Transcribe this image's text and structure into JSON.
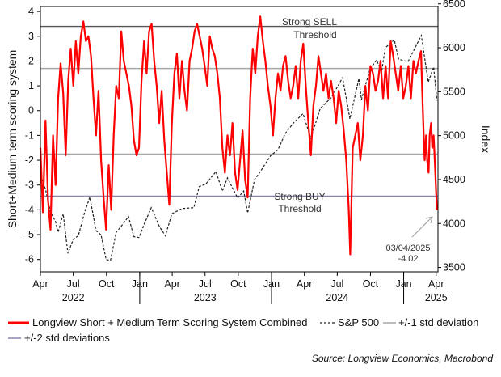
{
  "chart_data": {
    "type": "line",
    "left_axis": {
      "title": "Short+Medium term scoring system",
      "min": -6.5,
      "max": 4.2,
      "ticks": [
        4,
        3,
        2,
        1,
        0,
        -1,
        -2,
        -3,
        -4,
        -5,
        -6
      ]
    },
    "right_axis": {
      "title": "Index",
      "min": 3450,
      "max": 6470,
      "ticks": [
        6500,
        6000,
        5500,
        5000,
        4500,
        4000,
        3500
      ]
    },
    "x_axis": {
      "start": "2022-04-01",
      "end": "2025-04-06",
      "month_ticks": [
        {
          "date": "2022-04-01",
          "label": "Apr"
        },
        {
          "date": "2022-07-01",
          "label": "Jul"
        },
        {
          "date": "2022-10-01",
          "label": "Oct"
        },
        {
          "date": "2023-01-01",
          "label": "Jan"
        },
        {
          "date": "2023-04-01",
          "label": "Apr"
        },
        {
          "date": "2023-07-01",
          "label": "Jul"
        },
        {
          "date": "2023-10-01",
          "label": "Oct"
        },
        {
          "date": "2024-01-01",
          "label": "Jan"
        },
        {
          "date": "2024-04-01",
          "label": "Apr"
        },
        {
          "date": "2024-07-01",
          "label": "Jul"
        },
        {
          "date": "2024-10-01",
          "label": "Oct"
        },
        {
          "date": "2025-01-01",
          "label": "Jan"
        },
        {
          "date": "2025-04-01",
          "label": "Apr"
        }
      ],
      "year_labels": [
        {
          "date": "2022-07-01",
          "label": "2022"
        },
        {
          "date": "2023-07-01",
          "label": "2023"
        },
        {
          "date": "2024-07-01",
          "label": "2024"
        },
        {
          "date": "2025-04-01",
          "label": "2025"
        }
      ]
    },
    "reference_lines": [
      {
        "name": "strong-sell-threshold",
        "value": 3.4,
        "color": "#555555"
      },
      {
        "name": "plus-1-std",
        "value": 1.7,
        "color": "#a6a6a6"
      },
      {
        "name": "minus-1-std",
        "value": -1.75,
        "color": "#a6a6a6"
      },
      {
        "name": "strong-buy-threshold",
        "value": -3.45,
        "color": "#8b84b0"
      }
    ],
    "annotations": {
      "sell_line1": "Strong SELL",
      "sell_line2": "Threshold",
      "buy_line1": "Strong BUY",
      "buy_line2": "Threshold",
      "last_date": "03/04/2025",
      "last_value": "-4.02"
    },
    "series": [
      {
        "name": "Longview Short + Medium Term Scoring System Combined",
        "axis": "left",
        "color": "#ff0000",
        "style": "solid",
        "points": [
          [
            "2022-04-01",
            -1.5
          ],
          [
            "2022-04-08",
            -4.1
          ],
          [
            "2022-04-15",
            -0.4
          ],
          [
            "2022-04-22",
            -3.6
          ],
          [
            "2022-04-29",
            -4.8
          ],
          [
            "2022-05-06",
            -1.0
          ],
          [
            "2022-05-13",
            -3.0
          ],
          [
            "2022-05-20",
            0.5
          ],
          [
            "2022-05-27",
            1.9
          ],
          [
            "2022-06-03",
            0.7
          ],
          [
            "2022-06-10",
            -1.8
          ],
          [
            "2022-06-17",
            1.2
          ],
          [
            "2022-06-24",
            2.5
          ],
          [
            "2022-07-01",
            1.0
          ],
          [
            "2022-07-08",
            2.8
          ],
          [
            "2022-07-15",
            1.5
          ],
          [
            "2022-07-22",
            3.0
          ],
          [
            "2022-07-29",
            3.6
          ],
          [
            "2022-08-05",
            2.8
          ],
          [
            "2022-08-12",
            3.0
          ],
          [
            "2022-08-19",
            2.2
          ],
          [
            "2022-08-26",
            0.5
          ],
          [
            "2022-09-02",
            -1.0
          ],
          [
            "2022-09-09",
            0.8
          ],
          [
            "2022-09-16",
            -2.0
          ],
          [
            "2022-09-23",
            -3.5
          ],
          [
            "2022-09-30",
            -4.8
          ],
          [
            "2022-10-07",
            -2.2
          ],
          [
            "2022-10-14",
            -4.0
          ],
          [
            "2022-10-21",
            -1.0
          ],
          [
            "2022-10-28",
            1.0
          ],
          [
            "2022-11-04",
            0.5
          ],
          [
            "2022-11-11",
            3.2
          ],
          [
            "2022-11-18",
            2.0
          ],
          [
            "2022-11-25",
            1.5
          ],
          [
            "2022-12-02",
            1.0
          ],
          [
            "2022-12-09",
            0.2
          ],
          [
            "2022-12-16",
            -1.2
          ],
          [
            "2022-12-23",
            -1.8
          ],
          [
            "2022-12-30",
            -1.5
          ],
          [
            "2023-01-06",
            1.2
          ],
          [
            "2023-01-13",
            2.8
          ],
          [
            "2023-01-20",
            1.5
          ],
          [
            "2023-01-27",
            3.2
          ],
          [
            "2023-02-03",
            3.5
          ],
          [
            "2023-02-10",
            2.0
          ],
          [
            "2023-02-17",
            1.0
          ],
          [
            "2023-02-24",
            -0.5
          ],
          [
            "2023-03-03",
            0.8
          ],
          [
            "2023-03-10",
            -1.2
          ],
          [
            "2023-03-17",
            -2.5
          ],
          [
            "2023-03-24",
            -3.8
          ],
          [
            "2023-03-31",
            -0.5
          ],
          [
            "2023-04-07",
            1.5
          ],
          [
            "2023-04-14",
            2.3
          ],
          [
            "2023-04-21",
            0.5
          ],
          [
            "2023-04-28",
            2.0
          ],
          [
            "2023-05-05",
            0.8
          ],
          [
            "2023-05-12",
            0.0
          ],
          [
            "2023-05-19",
            2.0
          ],
          [
            "2023-05-26",
            2.5
          ],
          [
            "2023-06-02",
            3.2
          ],
          [
            "2023-06-09",
            3.5
          ],
          [
            "2023-06-16",
            3.0
          ],
          [
            "2023-06-23",
            2.5
          ],
          [
            "2023-06-30",
            1.8
          ],
          [
            "2023-07-07",
            1.0
          ],
          [
            "2023-07-14",
            3.0
          ],
          [
            "2023-07-21",
            2.5
          ],
          [
            "2023-07-28",
            2.2
          ],
          [
            "2023-08-04",
            1.5
          ],
          [
            "2023-08-11",
            0.5
          ],
          [
            "2023-08-18",
            -1.5
          ],
          [
            "2023-08-25",
            -2.5
          ],
          [
            "2023-09-01",
            -1.0
          ],
          [
            "2023-09-08",
            -1.8
          ],
          [
            "2023-09-15",
            -0.5
          ],
          [
            "2023-09-22",
            -2.5
          ],
          [
            "2023-09-29",
            -3.2
          ],
          [
            "2023-10-06",
            -2.0
          ],
          [
            "2023-10-13",
            -0.8
          ],
          [
            "2023-10-20",
            -2.8
          ],
          [
            "2023-10-27",
            -3.5
          ],
          [
            "2023-11-03",
            0.5
          ],
          [
            "2023-11-10",
            2.5
          ],
          [
            "2023-11-17",
            1.5
          ],
          [
            "2023-11-24",
            3.0
          ],
          [
            "2023-12-01",
            3.8
          ],
          [
            "2023-12-08",
            2.8
          ],
          [
            "2023-12-15",
            2.0
          ],
          [
            "2023-12-22",
            1.0
          ],
          [
            "2023-12-29",
            0.2
          ],
          [
            "2024-01-05",
            -1.0
          ],
          [
            "2024-01-12",
            0.5
          ],
          [
            "2024-01-19",
            1.5
          ],
          [
            "2024-01-26",
            0.8
          ],
          [
            "2024-02-02",
            1.8
          ],
          [
            "2024-02-09",
            2.2
          ],
          [
            "2024-02-16",
            1.2
          ],
          [
            "2024-02-23",
            0.5
          ],
          [
            "2024-03-01",
            1.0
          ],
          [
            "2024-03-08",
            1.8
          ],
          [
            "2024-03-15",
            0.5
          ],
          [
            "2024-03-22",
            2.0
          ],
          [
            "2024-03-29",
            2.7
          ],
          [
            "2024-04-05",
            1.0
          ],
          [
            "2024-04-12",
            -0.5
          ],
          [
            "2024-04-19",
            -1.8
          ],
          [
            "2024-04-26",
            0.2
          ],
          [
            "2024-05-03",
            1.0
          ],
          [
            "2024-05-10",
            2.2
          ],
          [
            "2024-05-17",
            1.5
          ],
          [
            "2024-05-24",
            0.8
          ],
          [
            "2024-05-31",
            1.5
          ],
          [
            "2024-06-07",
            0.5
          ],
          [
            "2024-06-14",
            1.2
          ],
          [
            "2024-06-21",
            0.5
          ],
          [
            "2024-06-28",
            -0.5
          ],
          [
            "2024-07-05",
            0.8
          ],
          [
            "2024-07-12",
            0.2
          ],
          [
            "2024-07-19",
            -0.8
          ],
          [
            "2024-07-26",
            -2.0
          ],
          [
            "2024-08-02",
            -4.0
          ],
          [
            "2024-08-06",
            -5.8
          ],
          [
            "2024-08-13",
            -1.5
          ],
          [
            "2024-08-20",
            -1.0
          ],
          [
            "2024-08-27",
            -0.5
          ],
          [
            "2024-09-03",
            -2.0
          ],
          [
            "2024-09-10",
            -1.0
          ],
          [
            "2024-09-17",
            1.0
          ],
          [
            "2024-09-24",
            0.0
          ],
          [
            "2024-10-01",
            1.8
          ],
          [
            "2024-10-08",
            1.5
          ],
          [
            "2024-10-15",
            0.8
          ],
          [
            "2024-10-22",
            1.2
          ],
          [
            "2024-10-29",
            2.0
          ],
          [
            "2024-11-05",
            0.5
          ],
          [
            "2024-11-12",
            1.8
          ],
          [
            "2024-11-19",
            0.5
          ],
          [
            "2024-11-26",
            2.8
          ],
          [
            "2024-12-03",
            2.2
          ],
          [
            "2024-12-10",
            1.5
          ],
          [
            "2024-12-17",
            0.8
          ],
          [
            "2024-12-24",
            1.8
          ],
          [
            "2024-12-31",
            0.5
          ],
          [
            "2025-01-07",
            1.0
          ],
          [
            "2025-01-14",
            1.8
          ],
          [
            "2025-01-21",
            0.5
          ],
          [
            "2025-01-28",
            2.0
          ],
          [
            "2025-02-04",
            1.5
          ],
          [
            "2025-02-11",
            2.0
          ],
          [
            "2025-02-18",
            2.4
          ],
          [
            "2025-02-21",
            1.0
          ],
          [
            "2025-02-25",
            -0.8
          ],
          [
            "2025-02-28",
            -2.0
          ],
          [
            "2025-03-04",
            -1.0
          ],
          [
            "2025-03-07",
            -2.0
          ],
          [
            "2025-03-11",
            -2.5
          ],
          [
            "2025-03-14",
            -1.0
          ],
          [
            "2025-03-18",
            -0.5
          ],
          [
            "2025-03-21",
            -1.5
          ],
          [
            "2025-03-25",
            -1.0
          ],
          [
            "2025-03-28",
            -2.0
          ],
          [
            "2025-04-03",
            -4.02
          ]
        ]
      },
      {
        "name": "S&P 500",
        "axis": "right",
        "color": "#222222",
        "style": "dashed",
        "points": [
          [
            "2022-04-01",
            4550
          ],
          [
            "2022-04-15",
            4390
          ],
          [
            "2022-04-29",
            4130
          ],
          [
            "2022-05-13",
            4020
          ],
          [
            "2022-05-20",
            3900
          ],
          [
            "2022-06-03",
            4110
          ],
          [
            "2022-06-16",
            3660
          ],
          [
            "2022-07-01",
            3820
          ],
          [
            "2022-07-15",
            3860
          ],
          [
            "2022-08-01",
            4120
          ],
          [
            "2022-08-16",
            4300
          ],
          [
            "2022-09-02",
            3920
          ],
          [
            "2022-09-16",
            3870
          ],
          [
            "2022-09-30",
            3590
          ],
          [
            "2022-10-12",
            3580
          ],
          [
            "2022-10-28",
            3900
          ],
          [
            "2022-11-15",
            3990
          ],
          [
            "2022-12-01",
            4080
          ],
          [
            "2022-12-16",
            3850
          ],
          [
            "2022-12-30",
            3840
          ],
          [
            "2023-01-13",
            3990
          ],
          [
            "2023-02-02",
            4180
          ],
          [
            "2023-02-24",
            3970
          ],
          [
            "2023-03-13",
            3860
          ],
          [
            "2023-03-31",
            4110
          ],
          [
            "2023-04-28",
            4170
          ],
          [
            "2023-05-31",
            4180
          ],
          [
            "2023-06-15",
            4420
          ],
          [
            "2023-07-03",
            4450
          ],
          [
            "2023-07-31",
            4590
          ],
          [
            "2023-08-18",
            4370
          ],
          [
            "2023-09-01",
            4520
          ],
          [
            "2023-09-29",
            4290
          ],
          [
            "2023-10-16",
            4370
          ],
          [
            "2023-10-27",
            4120
          ],
          [
            "2023-11-15",
            4500
          ],
          [
            "2023-12-01",
            4590
          ],
          [
            "2023-12-29",
            4770
          ],
          [
            "2024-01-19",
            4840
          ],
          [
            "2024-02-09",
            5030
          ],
          [
            "2024-03-01",
            5140
          ],
          [
            "2024-03-28",
            5250
          ],
          [
            "2024-04-19",
            4970
          ],
          [
            "2024-05-15",
            5310
          ],
          [
            "2024-06-14",
            5430
          ],
          [
            "2024-07-16",
            5660
          ],
          [
            "2024-08-05",
            5190
          ],
          [
            "2024-08-30",
            5650
          ],
          [
            "2024-09-06",
            5410
          ],
          [
            "2024-09-30",
            5760
          ],
          [
            "2024-10-18",
            5860
          ],
          [
            "2024-11-01",
            5730
          ],
          [
            "2024-11-11",
            6000
          ],
          [
            "2024-12-06",
            6090
          ],
          [
            "2024-12-18",
            5870
          ],
          [
            "2025-01-13",
            5840
          ],
          [
            "2025-02-19",
            6140
          ],
          [
            "2025-03-10",
            5610
          ],
          [
            "2025-03-25",
            5780
          ],
          [
            "2025-04-03",
            5400
          ]
        ]
      },
      {
        "name": "+/-1 std deviation",
        "color": "#a6a6a6",
        "style": "solid"
      },
      {
        "name": "+/-2 std deviations",
        "color": "#8b84b0",
        "style": "solid"
      }
    ],
    "grid": false,
    "legend_placement": "bottom",
    "source": "Source: Longview Economics, Macrobond"
  }
}
